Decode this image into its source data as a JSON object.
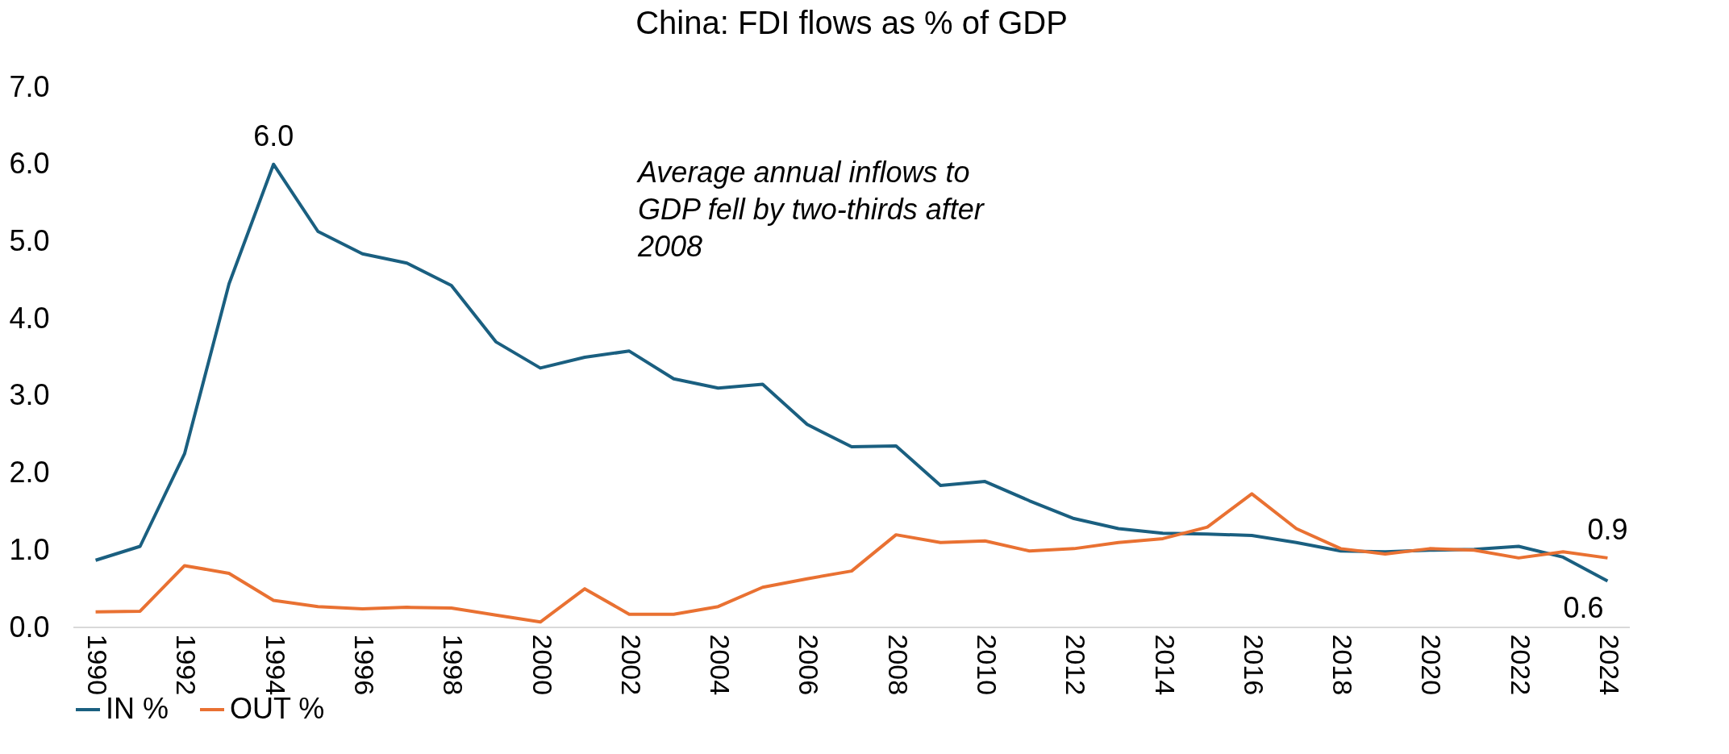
{
  "chart_data": {
    "type": "line",
    "title": "China: FDI flows as % of GDP",
    "categories": [
      "1990",
      null,
      "1992",
      null,
      "1994",
      null,
      "1996",
      null,
      "1998",
      null,
      "2000",
      null,
      "2002",
      null,
      "2004",
      null,
      "2006",
      null,
      "2008",
      null,
      "2010",
      null,
      "2012",
      null,
      "2014",
      null,
      "2016",
      null,
      "2018",
      null,
      "2020",
      null,
      "2022",
      null,
      "2024"
    ],
    "series": [
      {
        "name": "IN %",
        "color": "#1a5f80",
        "values": [
          0.87,
          1.05,
          2.25,
          4.45,
          6.0,
          5.13,
          4.84,
          4.72,
          4.43,
          3.7,
          3.36,
          3.5,
          3.58,
          3.22,
          3.1,
          3.15,
          2.63,
          2.34,
          2.35,
          1.84,
          1.89,
          1.64,
          1.41,
          1.28,
          1.22,
          1.21,
          1.19,
          1.1,
          0.99,
          0.98,
          1.0,
          1.01,
          1.05,
          0.91,
          0.6
        ],
        "value_labels": [
          null,
          null,
          null,
          null,
          "6.0",
          null,
          null,
          null,
          null,
          null,
          null,
          null,
          null,
          null,
          null,
          null,
          null,
          null,
          null,
          null,
          null,
          null,
          null,
          null,
          null,
          null,
          null,
          null,
          null,
          null,
          null,
          null,
          null,
          null,
          "0.6"
        ]
      },
      {
        "name": "OUT %",
        "color": "#e97132",
        "values": [
          0.2,
          0.21,
          0.8,
          0.7,
          0.35,
          0.27,
          0.24,
          0.26,
          0.25,
          0.16,
          0.07,
          0.5,
          0.17,
          0.17,
          0.27,
          0.52,
          0.63,
          0.73,
          1.2,
          1.1,
          1.12,
          0.99,
          1.02,
          1.1,
          1.15,
          1.3,
          1.73,
          1.28,
          1.02,
          0.95,
          1.02,
          1.0,
          0.9,
          0.98,
          0.9
        ],
        "value_labels": [
          null,
          null,
          null,
          null,
          null,
          null,
          null,
          null,
          null,
          null,
          null,
          null,
          null,
          null,
          null,
          null,
          null,
          null,
          null,
          null,
          null,
          null,
          null,
          null,
          null,
          null,
          null,
          null,
          null,
          null,
          null,
          null,
          null,
          null,
          "0.9"
        ]
      }
    ],
    "ylim": [
      0,
      7
    ],
    "yticks": [
      {
        "value": 0,
        "label": "0.0"
      },
      {
        "value": 1,
        "label": "1.0"
      },
      {
        "value": 2,
        "label": "2.0"
      },
      {
        "value": 3,
        "label": "3.0"
      },
      {
        "value": 4,
        "label": "4.0"
      },
      {
        "value": 5,
        "label": "5.0"
      },
      {
        "value": 6,
        "label": "6.0"
      },
      {
        "value": 7,
        "label": "7.0"
      }
    ],
    "annotations": [
      "Average annual inflows to GDP fell by two-thirds after 2008"
    ],
    "legend": "bottom",
    "grid": false,
    "marker": "none",
    "line_style": "solid"
  }
}
